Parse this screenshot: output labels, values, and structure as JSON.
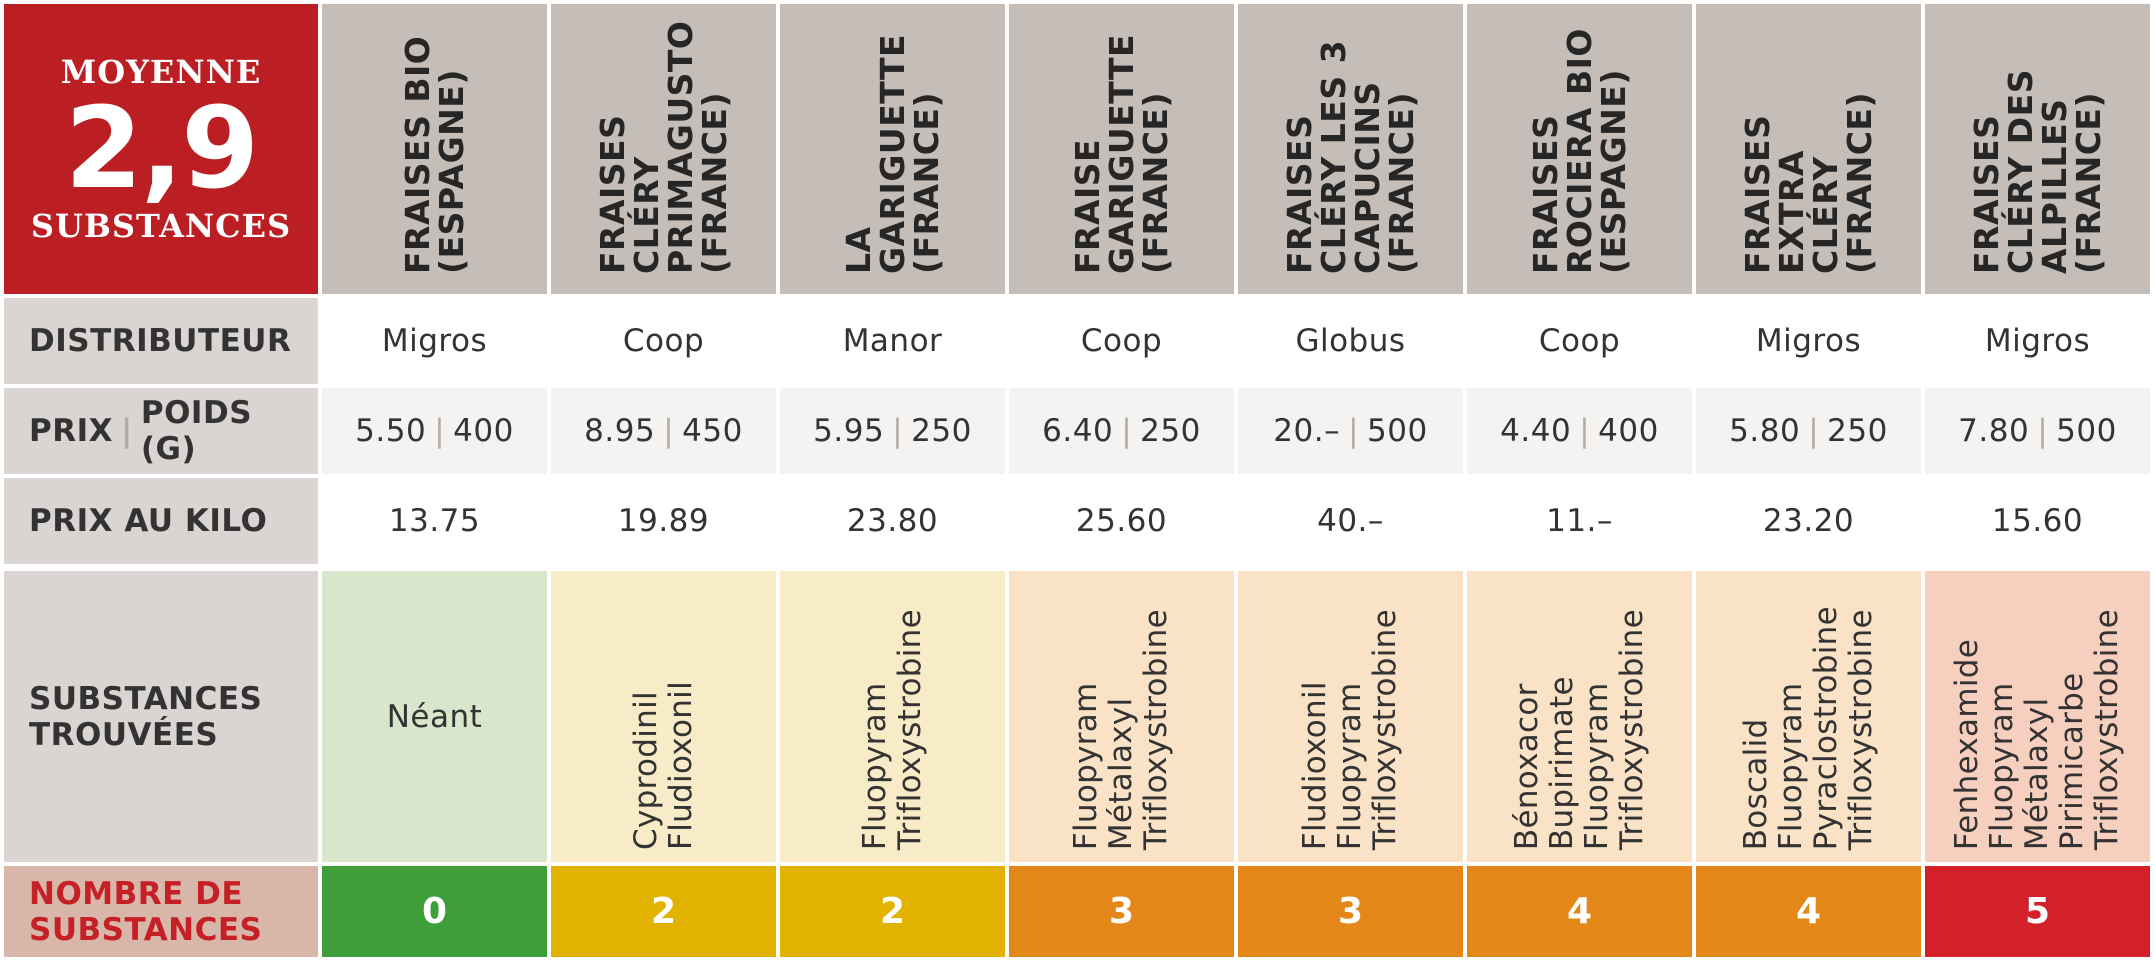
{
  "colors": {
    "level_0_bg": "#3d9e3a",
    "level_2_bg": "#e1b300",
    "level_3_bg": "#e38719",
    "level_4_bg": "#e38719",
    "level_5_bg": "#d3202a",
    "sub_level_0": "#d8e6cc",
    "sub_level_2": "#f8ebc7",
    "sub_level_3": "#fae2c7",
    "sub_level_4": "#fae2c7",
    "sub_level_5": "#f7cfbf"
  },
  "summary": {
    "label_top": "MOYENNE",
    "value": "2,9",
    "label_bottom": "SUBSTANCES"
  },
  "row_labels": {
    "distributor": "DISTRIBUTEUR",
    "price_a": "PRIX",
    "price_sep": "|",
    "price_b": "POIDS (G)",
    "kilo": "PRIX AU KILO",
    "substances": "SUBSTANCES\nTROUVÉES",
    "count": "NOMBRE DE\nSUBSTANCES"
  },
  "products": [
    {
      "name": "FRAISES BIO\n(ESPAGNE)",
      "distributor": "Migros",
      "price": "5.50",
      "weight": "400",
      "kilo": "13.75",
      "substances": "Néant",
      "count": "0",
      "level": 0
    },
    {
      "name": "FRAISES\nCLÉRY\nPRIMAGUSTO\n(FRANCE)",
      "distributor": "Coop",
      "price": "8.95",
      "weight": "450",
      "kilo": "19.89",
      "substances": "Cyprodinil\nFludioxonil",
      "count": "2",
      "level": 2
    },
    {
      "name": "LA\nGARIGUETTE\n(FRANCE)",
      "distributor": "Manor",
      "price": "5.95",
      "weight": "250",
      "kilo": "23.80",
      "substances": "Fluopyram\nTrifloxystrobine",
      "count": "2",
      "level": 2
    },
    {
      "name": "FRAISE\nGARIGUETTE\n(FRANCE)",
      "distributor": "Coop",
      "price": "6.40",
      "weight": "250",
      "kilo": "25.60",
      "substances": "Fluopyram\nMétalaxyl\nTrifloxystrobine",
      "count": "3",
      "level": 3
    },
    {
      "name": "FRAISES\nCLÉRY LES 3\nCAPUCINS\n(FRANCE)",
      "distributor": "Globus",
      "price": "20.–",
      "weight": "500",
      "kilo": "40.–",
      "substances": "Fludioxonil\nFluopyram\nTrifloxystrobine",
      "count": "3",
      "level": 3
    },
    {
      "name": "FRAISES\nROCIERA BIO\n(ESPAGNE)",
      "distributor": "Coop",
      "price": "4.40",
      "weight": "400",
      "kilo": "11.–",
      "substances": "Bénoxacor\nBupirimate\nFluopyram\nTrifloxystrobine",
      "count": "4",
      "level": 4
    },
    {
      "name": "FRAISES\nEXTRA CLÉRY\n(FRANCE)",
      "distributor": "Migros",
      "price": "5.80",
      "weight": "250",
      "kilo": "23.20",
      "substances": "Boscalid\nFluopyram\nPyraclostrobine\nTrifloxystrobine",
      "count": "4",
      "level": 4
    },
    {
      "name": "FRAISES\nCLÉRY DES\nALPILLES\n(FRANCE)",
      "distributor": "Migros",
      "price": "7.80",
      "weight": "500",
      "kilo": "15.60",
      "substances": "Fenhexamide\nFluopyram\nMétalaxyl\nPirimicarbe\nTrifloxystrobine",
      "count": "5",
      "level": 5
    }
  ]
}
